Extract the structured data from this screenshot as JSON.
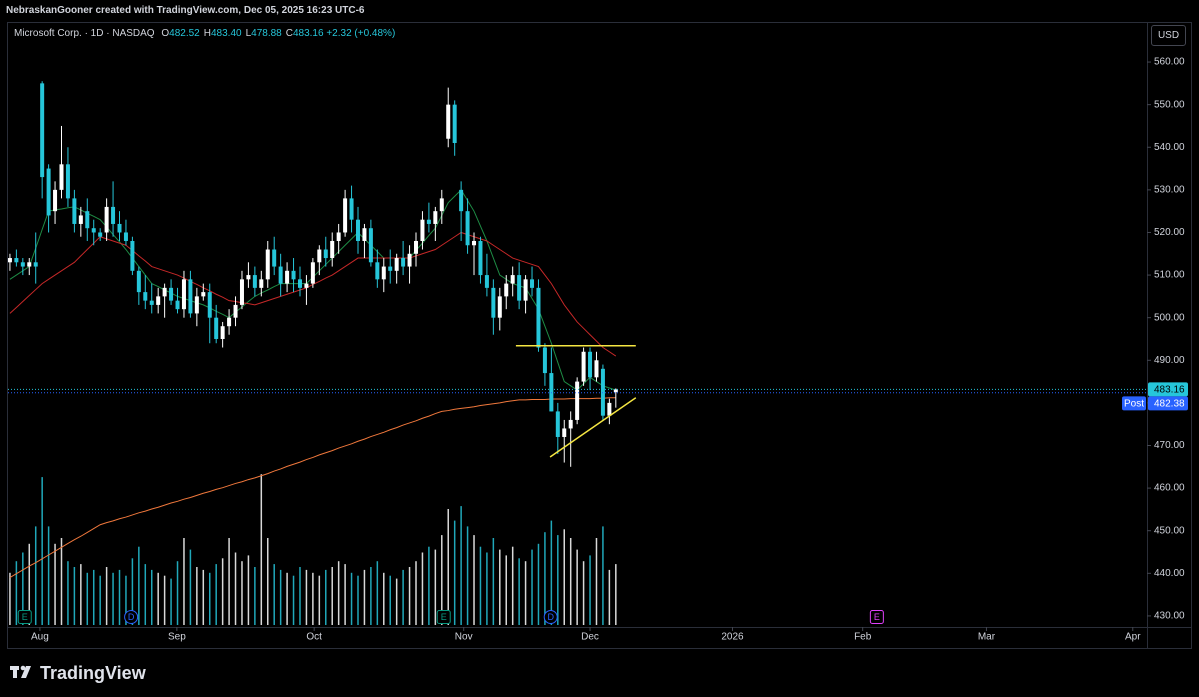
{
  "header": {
    "credit": "NebraskanGooner created with TradingView.com, Dec 05, 2025 16:23 UTC-6"
  },
  "footer": {
    "logo": "TradingView"
  },
  "chart_data": {
    "type": "candlestick",
    "symbol": "Microsoft Corp. · 1D · NASDAQ",
    "legend": [
      {
        "label": "O",
        "value": "482.52"
      },
      {
        "label": "H",
        "value": "483.40"
      },
      {
        "label": "L",
        "value": "478.88"
      },
      {
        "label": "C",
        "value": "483.16"
      }
    ],
    "change": "+2.32 (+0.48%)",
    "currency": "USD",
    "up_color": "#ffffff",
    "down_color": "#26c6da",
    "open": [
      513,
      514,
      513,
      512,
      513,
      555,
      535,
      525,
      530,
      536,
      528,
      522,
      525,
      521,
      520,
      520,
      526,
      522,
      520,
      518,
      511,
      506,
      504,
      503,
      505,
      507,
      504,
      502,
      509,
      501,
      505,
      506,
      500,
      495,
      498,
      500,
      503,
      509,
      510,
      507,
      509,
      516,
      512,
      508,
      511,
      509,
      507,
      508,
      513,
      516,
      514,
      518,
      520,
      528,
      523,
      518,
      521,
      513,
      509,
      512,
      511,
      514,
      512,
      515,
      518,
      523,
      522,
      525,
      542,
      550,
      530,
      525,
      517,
      518,
      510,
      507,
      500,
      505,
      508,
      510,
      504,
      509,
      507,
      493,
      487,
      478,
      472,
      474,
      476,
      485,
      492,
      486,
      488,
      477,
      482.52
    ],
    "high": [
      515,
      516,
      514,
      514,
      520,
      555.5,
      536,
      532,
      545,
      540,
      530,
      526,
      528,
      523,
      521,
      528,
      532,
      525,
      523,
      519,
      512,
      510,
      508,
      507,
      508,
      509,
      507,
      511,
      511,
      507,
      508,
      508,
      503,
      499,
      502,
      505,
      511,
      513,
      512,
      511,
      518,
      519,
      515,
      513,
      514,
      512,
      510,
      514,
      517,
      519,
      520,
      522,
      530,
      531,
      526,
      522,
      523,
      516,
      514,
      516,
      515,
      518,
      517,
      520,
      525,
      527,
      526,
      530,
      554,
      551,
      532,
      528,
      520,
      519,
      515,
      509,
      507,
      510,
      512,
      513,
      510,
      512,
      509,
      494,
      493,
      480,
      476,
      478,
      486,
      493,
      493,
      492,
      489,
      481,
      483.4
    ],
    "low": [
      511,
      512,
      510,
      510,
      508,
      528,
      520,
      522,
      528,
      526,
      520,
      519,
      518,
      517,
      518,
      518,
      519,
      518,
      517,
      510,
      503,
      502,
      501,
      501,
      500,
      503,
      501,
      500,
      500,
      498,
      504,
      494,
      494,
      493,
      496,
      498,
      502,
      507,
      505,
      505,
      507,
      510,
      505,
      506,
      506,
      505,
      503,
      507,
      510,
      512,
      512,
      515,
      519,
      520,
      515,
      514,
      512,
      507,
      506,
      508,
      508,
      510,
      508,
      512,
      516,
      520,
      518,
      522,
      540,
      538,
      518,
      515,
      510,
      508,
      505,
      496,
      497,
      502,
      505,
      502,
      501,
      505,
      492,
      484,
      478,
      468,
      466,
      465,
      475,
      484,
      483,
      485,
      476,
      475,
      478.88
    ],
    "close": [
      514,
      513,
      512,
      513,
      512,
      533,
      524,
      530,
      536,
      528,
      522,
      524,
      521,
      520,
      519,
      526,
      522,
      520,
      518,
      511,
      506,
      504,
      503,
      505,
      507,
      504,
      502,
      509,
      501,
      505,
      506,
      500,
      495,
      498,
      500,
      503,
      509,
      510,
      507,
      509,
      516,
      512,
      508,
      511,
      509,
      507,
      508,
      513,
      516,
      514,
      518,
      520,
      528,
      523,
      518,
      521,
      513,
      509,
      512,
      511,
      514,
      512,
      515,
      518,
      523,
      522,
      525,
      528,
      550,
      541,
      525,
      517,
      518,
      510,
      507,
      500,
      505,
      508,
      510,
      504,
      509,
      507,
      493,
      487,
      478,
      472,
      474,
      476,
      485,
      492,
      486,
      490,
      477,
      480,
      483.16
    ],
    "volume": [
      18,
      22,
      25,
      28,
      34,
      51,
      34,
      28,
      30,
      22,
      20,
      21,
      18,
      19,
      17,
      20,
      18,
      19,
      17,
      23,
      27,
      21,
      19,
      18,
      17,
      16,
      22,
      30,
      26,
      20,
      19,
      18,
      21,
      23,
      30,
      25,
      22,
      24,
      20,
      52,
      30,
      21,
      19,
      18,
      17,
      20,
      19,
      18,
      17,
      19,
      20,
      22,
      21,
      18,
      17,
      19,
      20,
      22,
      18,
      17,
      16,
      19,
      20,
      22,
      25,
      27,
      26,
      31,
      40,
      36,
      41,
      34,
      31,
      27,
      25,
      30,
      26,
      24,
      27,
      23,
      22,
      26,
      28,
      32,
      36,
      31,
      33,
      30,
      26,
      22,
      24,
      30,
      34,
      19,
      21
    ],
    "series": [
      {
        "color": "#1e8c45",
        "values": [
          509,
          510,
          511,
          512,
          516.3,
          520.7,
          525,
          525.3,
          525.5,
          525.8,
          526,
          525.3,
          524.5,
          523.8,
          523,
          521.3,
          519.5,
          517.8,
          516,
          514,
          512,
          510,
          508,
          507.3,
          506.5,
          505.8,
          505,
          504.5,
          504,
          503.5,
          503,
          502.3,
          501.5,
          500.8,
          500,
          501.3,
          502.5,
          503.8,
          505,
          505.8,
          506.5,
          507.3,
          508,
          508,
          508,
          508,
          508,
          509.5,
          511,
          512.5,
          514,
          515.5,
          517,
          518.5,
          520,
          518.5,
          517,
          515.5,
          514,
          514,
          514,
          514,
          514,
          515.8,
          517.5,
          519.3,
          521,
          524,
          527,
          528.5,
          530,
          527.5,
          525,
          521.5,
          518,
          514,
          510,
          509,
          508,
          507.5,
          507,
          504.5,
          502,
          498,
          494,
          489.5,
          485,
          484,
          483,
          484.5,
          486,
          485,
          484,
          483.5,
          483
        ]
      },
      {
        "color": "#c62828",
        "values": [
          501,
          502.4,
          503.8,
          505.2,
          506.6,
          508,
          509,
          510,
          511,
          512,
          513,
          514.5,
          516,
          517.5,
          519,
          518.5,
          518,
          517.5,
          517,
          515.8,
          514.5,
          513.3,
          512,
          511.5,
          511,
          510.5,
          510,
          509.3,
          508.5,
          507.8,
          507,
          506.3,
          505.5,
          504.8,
          504,
          503.8,
          503.5,
          503.3,
          503,
          503.5,
          504,
          504.5,
          505,
          505.5,
          506,
          506.5,
          507,
          507.8,
          508.5,
          509.3,
          510,
          511,
          512,
          513,
          514,
          514,
          514,
          514,
          514,
          514,
          514,
          514,
          514,
          514.5,
          515,
          515.5,
          516,
          517,
          518,
          519,
          520,
          519.5,
          519,
          518.5,
          518,
          517,
          516,
          515,
          514,
          513.5,
          513,
          512.5,
          512,
          510,
          508,
          505.5,
          503,
          501,
          499,
          497.5,
          496,
          494.5,
          493,
          492,
          491
        ]
      },
      {
        "color": "#f0783c",
        "values": [
          439,
          439.9,
          440.8,
          441.7,
          442.5,
          443.4,
          444.3,
          445.2,
          446.1,
          447,
          447.9,
          448.7,
          449.6,
          450.5,
          451.4,
          451.9,
          452.3,
          452.8,
          453.2,
          453.7,
          454.2,
          454.6,
          455.1,
          455.5,
          456,
          456.5,
          456.9,
          457.4,
          457.8,
          458.3,
          458.8,
          459.2,
          459.7,
          460.1,
          460.6,
          461.1,
          461.5,
          462,
          462.4,
          462.9,
          463.4,
          464,
          464.5,
          465.1,
          465.6,
          466.1,
          466.7,
          467.2,
          467.8,
          468.3,
          468.8,
          469.4,
          469.9,
          470.4,
          471,
          471.5,
          472.1,
          472.6,
          473.1,
          473.7,
          474.2,
          474.8,
          475.3,
          475.8,
          476.4,
          476.9,
          477.5,
          478,
          478.2,
          478.5,
          478.7,
          478.9,
          479.1,
          479.4,
          479.6,
          479.8,
          480,
          480.3,
          480.5,
          480.7,
          480.7,
          480.8,
          480.8,
          480.8,
          480.9,
          480.9,
          480.9,
          481,
          481,
          481,
          481,
          481.1,
          481.1,
          481.2,
          481.2
        ]
      }
    ],
    "ylim": [
      427.4,
      569.4
    ],
    "yticks": [
      {
        "value": 430,
        "label": "430.00"
      },
      {
        "value": 440,
        "label": "440.00"
      },
      {
        "value": 450,
        "label": "450.00"
      },
      {
        "value": 460,
        "label": "460.00"
      },
      {
        "value": 470,
        "label": "470.00"
      },
      {
        "value": 480,
        "label": "480.00"
      },
      {
        "value": 490,
        "label": "490.00"
      },
      {
        "value": 500,
        "label": "500.00"
      },
      {
        "value": 510,
        "label": "510.00"
      },
      {
        "value": 520,
        "label": "520.00"
      },
      {
        "value": 530,
        "label": "530.00"
      },
      {
        "value": 540,
        "label": "540.00"
      },
      {
        "value": 550,
        "label": "550.00"
      },
      {
        "value": 560,
        "label": "560.00"
      }
    ],
    "xlim": [
      -0.3,
      176.1
    ],
    "xticks": [
      {
        "value": 4.65,
        "label": "Aug"
      },
      {
        "value": 25.9,
        "label": "Sep"
      },
      {
        "value": 47.2,
        "label": "Oct"
      },
      {
        "value": 70.4,
        "label": "Nov"
      },
      {
        "value": 90,
        "label": "Dec"
      },
      {
        "value": 112.1,
        "label": "2026"
      },
      {
        "value": 132.3,
        "label": "Feb"
      },
      {
        "value": 151.5,
        "label": "Mar"
      },
      {
        "value": 174.2,
        "label": "Apr"
      }
    ],
    "last_price": {
      "value": 483.16,
      "color": "#26c6da"
    },
    "post_price": {
      "label": "Post",
      "value": 482.38,
      "color": "#2962ff"
    },
    "drawings": [
      {
        "color": "#f5e642",
        "from": [
          78.5,
          493.4
        ],
        "to": [
          97.1,
          493.4
        ]
      },
      {
        "color": "#f5e642",
        "from": [
          83.8,
          467.3
        ],
        "to": [
          97.1,
          481.2
        ]
      }
    ],
    "events": [
      {
        "label": "E",
        "x": 2.3,
        "color": "#089981"
      },
      {
        "label": "D",
        "x": 18.8,
        "color": "#2962ff"
      },
      {
        "label": "E",
        "x": 67.3,
        "color": "#089981"
      },
      {
        "label": "D",
        "x": 83.9,
        "color": "#2962ff"
      },
      {
        "label": "E",
        "x": 134.5,
        "color": "#e040fb"
      }
    ]
  }
}
